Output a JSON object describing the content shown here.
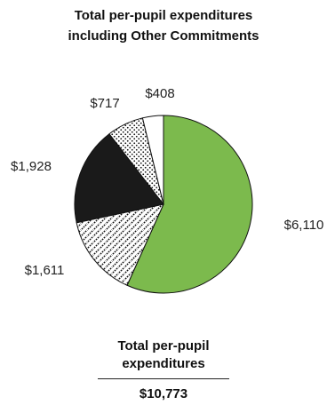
{
  "chart_data": {
    "type": "pie",
    "title_lines": [
      "Total per-pupil expenditures",
      "including Other Commitments"
    ],
    "slices": [
      {
        "label": "$6,110",
        "value": 6110,
        "color": "#7cba4d",
        "pattern": "solid"
      },
      {
        "label": "$1,611",
        "value": 1611,
        "color": "#ffffff",
        "pattern": "diagonal-hatch"
      },
      {
        "label": "$1,928",
        "value": 1928,
        "color": "#1a1a1a",
        "pattern": "solid"
      },
      {
        "label": "$717",
        "value": 717,
        "color": "#ffffff",
        "pattern": "dots"
      },
      {
        "label": "$408",
        "value": 408,
        "color": "#ffffff",
        "pattern": "solid"
      }
    ],
    "total": {
      "caption_lines": [
        "Total per-pupil",
        "expenditures"
      ],
      "value": "$10,773"
    }
  }
}
